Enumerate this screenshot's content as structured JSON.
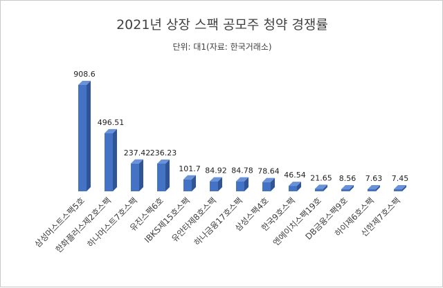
{
  "chart_data": {
    "type": "bar",
    "title": "2021년 상장 스팩 공모주 청약 경쟁률",
    "subtitle": "단위: 대1(자료: 한국거래소)",
    "categories": [
      "삼성머스트스팩5호",
      "한화플러스제2호스팩",
      "하나머스트7호스팩",
      "유진스팩6호",
      "IBKS제15호스팩",
      "유안타제8호스팩",
      "하나금융17호스팩",
      "삼성스팩4호",
      "한국9호스팩",
      "엔에이치스팩19호",
      "DB금융스팩9호",
      "하이제6호스팩",
      "신한제7호스팩"
    ],
    "values": [
      908.6,
      496.51,
      237.42,
      236.23,
      101.7,
      84.92,
      84.78,
      78.64,
      46.54,
      21.65,
      8.56,
      7.63,
      7.45
    ],
    "labels": [
      "908.6",
      "496.51",
      "237.42",
      "236.23",
      "101.7",
      "84.92",
      "84.78",
      "78.64",
      "46.54",
      "21.65",
      "8.56",
      "7.63",
      "7.45"
    ],
    "ylim": [
      0,
      1000
    ],
    "grid": false,
    "legend": "none",
    "colors": {
      "bar_front": "#4472c4",
      "bar_side": "#2f5597",
      "bar_top": "#6a92d8",
      "label": "#202020"
    }
  }
}
